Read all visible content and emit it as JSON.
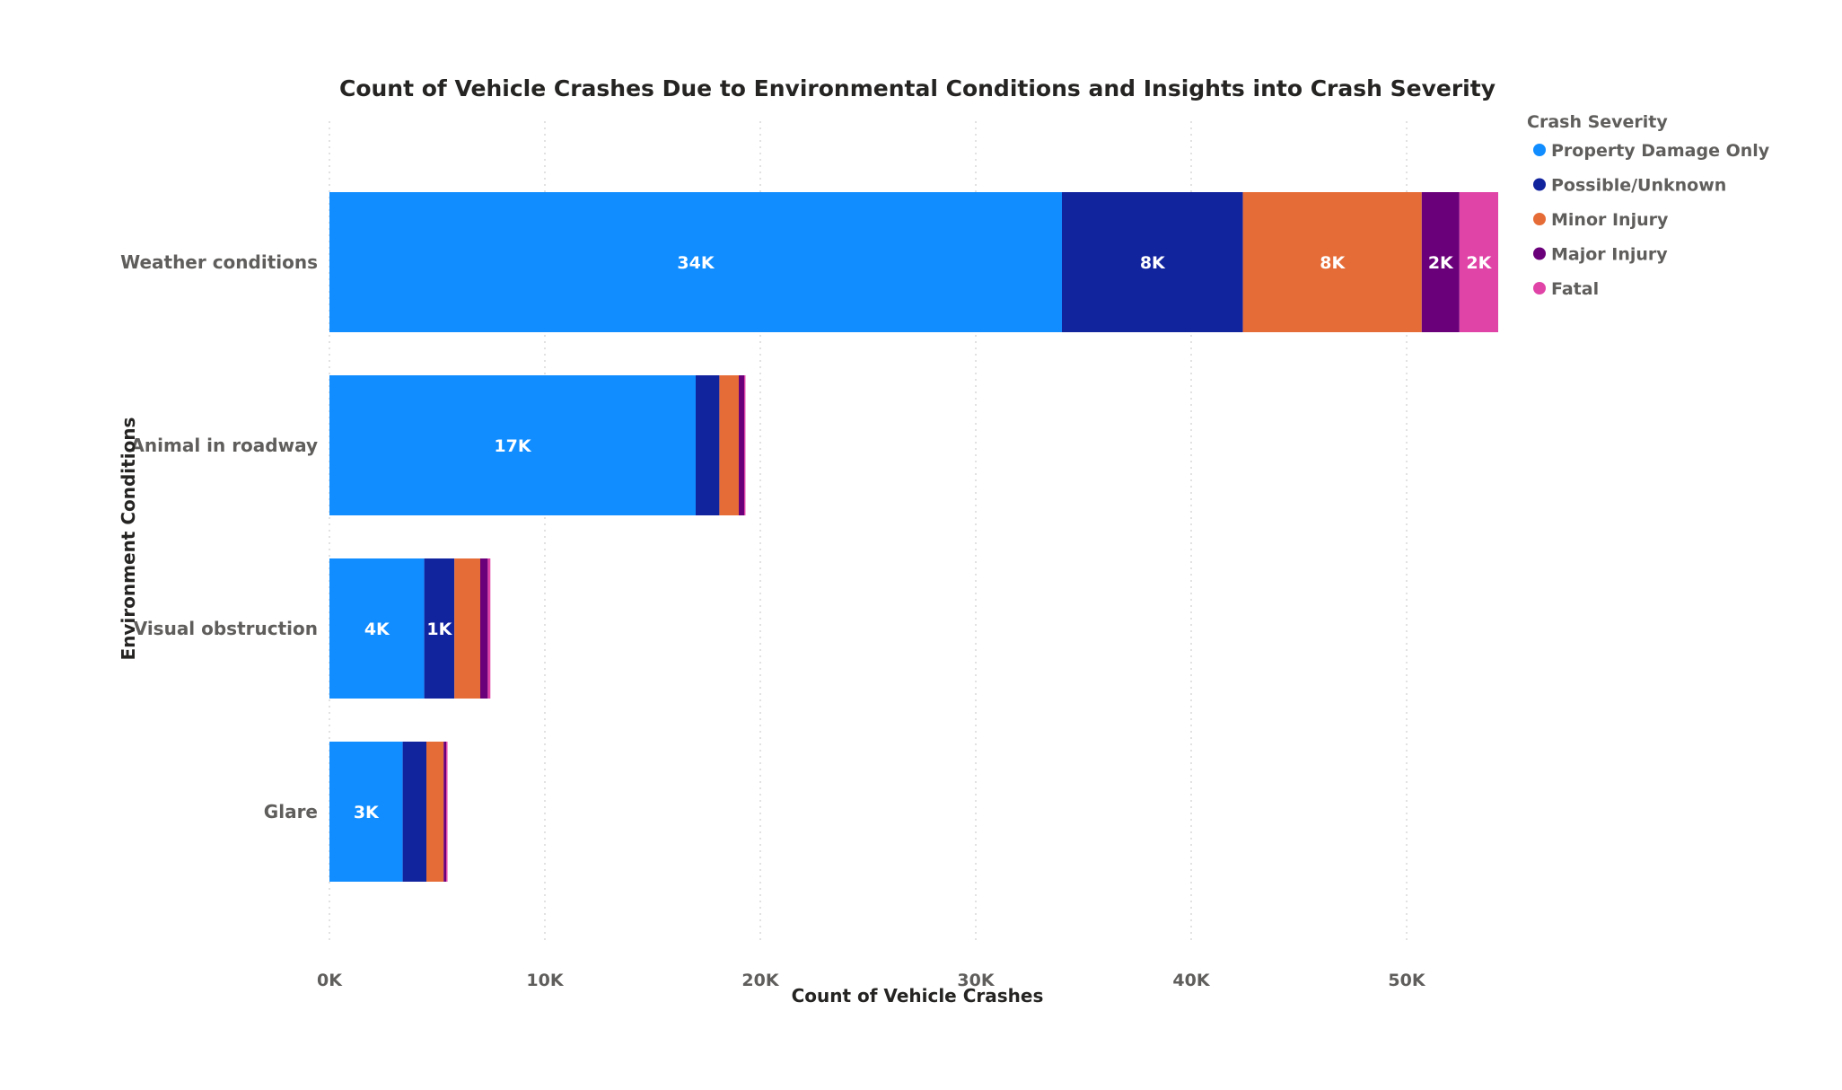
{
  "chart_data": {
    "type": "bar",
    "orientation": "horizontal",
    "stacked": true,
    "title": "Count of Vehicle Crashes Due to Environmental Conditions and Insights into Crash Severity",
    "xlabel": "Count of Vehicle Crashes",
    "ylabel": "Environment Conditions",
    "xlim": [
      0,
      55000
    ],
    "x_ticks": [
      0,
      10000,
      20000,
      30000,
      40000,
      50000
    ],
    "x_tick_labels": [
      "0K",
      "10K",
      "20K",
      "30K",
      "40K",
      "50K"
    ],
    "grid": "vertical dotted",
    "legend_title": "Crash Severity",
    "legend_position": "top-right",
    "categories": [
      "Weather conditions",
      "Animal in roadway",
      "Visual obstruction",
      "Glare"
    ],
    "series": [
      {
        "name": "Property Damage Only",
        "color": "#118DFF",
        "values": [
          34000,
          17000,
          4400,
          3400
        ],
        "labels": [
          "34K",
          "17K",
          "4K",
          "3K"
        ]
      },
      {
        "name": "Possible/Unknown",
        "color": "#12239E",
        "values": [
          8400,
          1100,
          1400,
          1100
        ],
        "labels": [
          "8K",
          "",
          "1K",
          ""
        ]
      },
      {
        "name": "Minor Injury",
        "color": "#E66C37",
        "values": [
          8300,
          900,
          1200,
          800
        ],
        "labels": [
          "8K",
          "",
          "",
          ""
        ]
      },
      {
        "name": "Major Injury",
        "color": "#6B007B",
        "values": [
          1750,
          250,
          350,
          120
        ],
        "labels": [
          "2K",
          "",
          "",
          ""
        ]
      },
      {
        "name": "Fatal",
        "color": "#E044A7",
        "values": [
          1800,
          60,
          120,
          60
        ],
        "labels": [
          "2K",
          "",
          "",
          ""
        ]
      }
    ]
  }
}
